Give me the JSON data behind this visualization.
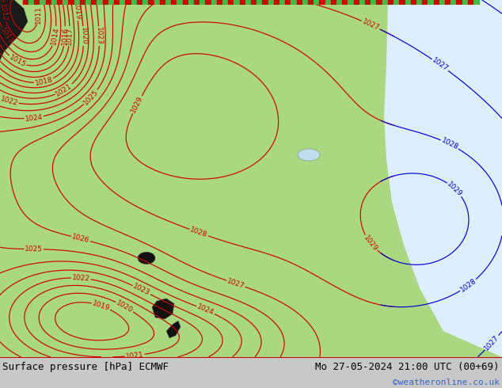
{
  "title_left": "Surface pressure [hPa] ECMWF",
  "title_right": "Mo 27-05-2024 21:00 UTC (00+69)",
  "copyright": "©weatheronline.co.uk",
  "bg_color": "#c8c8c8",
  "land_color": "#aad880",
  "sea_color": "#ddeeff",
  "contour_color_red": "#cc0000",
  "contour_color_blue": "#0000cc",
  "footer_bg": "#ffffff",
  "footer_text_color": "#000000",
  "copyright_color": "#3366cc",
  "font_size_footer": 9,
  "font_size_labels": 6.5
}
